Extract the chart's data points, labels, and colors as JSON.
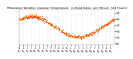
{
  "title": "Milwaukee Weather Outdoor Temperature  vs Heat Index  per Minute  (24 Hours)",
  "title_fontsize": 3.2,
  "bg_color": "#ffffff",
  "plot_bg_color": "#ffffff",
  "text_color": "#000000",
  "grid_color": "#aaaaaa",
  "temp_color": "#ff0000",
  "heat_color": "#ff8800",
  "ylim": [
    38,
    96
  ],
  "yticks": [
    40,
    50,
    60,
    70,
    80,
    90
  ],
  "n_points": 1440,
  "temp_min": 48,
  "temp_max": 88
}
